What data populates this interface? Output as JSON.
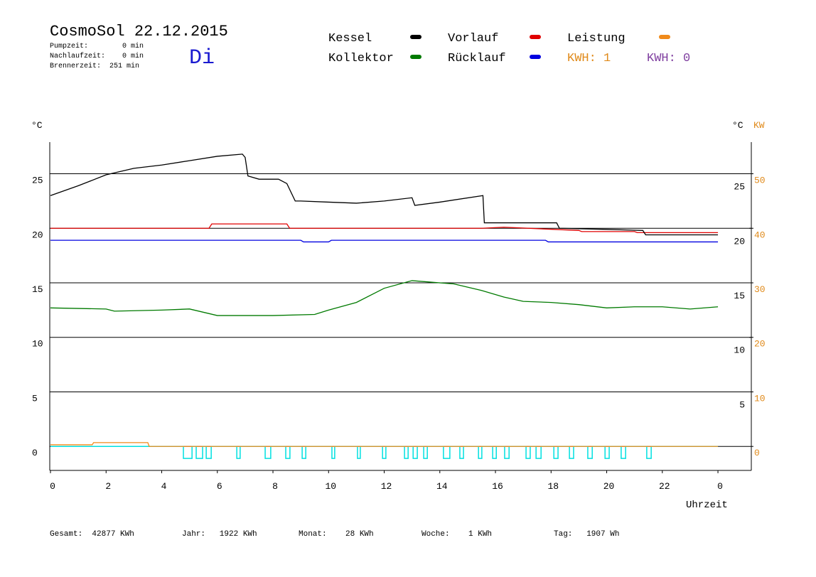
{
  "chart_data": {
    "type": "line",
    "title": "CosmoSol 22.12.2015",
    "info_lines": [
      "Pumpzeit:        0 min",
      "Nachlaufzeit:    0 min",
      "Brennerzeit:  251 min"
    ],
    "weekday": "Di",
    "kwh_labels": [
      {
        "text": "KWH: 1",
        "color": "#e08a1a"
      },
      {
        "text": "KWH: 0",
        "color": "#8040a0"
      }
    ],
    "y_label": "°C",
    "y_right_label": "°C",
    "y2_label": "KW",
    "x_label": "Uhrzeit",
    "footer": [
      "Gesamt:  42877 KWh",
      "Jahr:   1922 KWh",
      "Monat:    28 KWh",
      "Woche:    1 KWh",
      "Tag:   1907 Wh"
    ],
    "xlim": [
      0,
      25.2
    ],
    "xticks": [
      0,
      2,
      4,
      6,
      8,
      10,
      12,
      14,
      16,
      18,
      20,
      22,
      {
        "value": 24,
        "label": "0"
      }
    ],
    "ylim": [
      -2.2,
      27.9
    ],
    "yticks": [
      0,
      5,
      10,
      15,
      20,
      25
    ],
    "yticks_right": [
      5,
      10,
      15,
      20,
      25
    ],
    "y2lim": [
      -4.4,
      55.8
    ],
    "y2ticks": [
      0,
      10,
      20,
      30,
      40,
      50
    ],
    "grid": true,
    "series": [
      {
        "name": "Kessel",
        "color": "#000000",
        "x": [
          0,
          1,
          2,
          3,
          4,
          5,
          6,
          6.9,
          7.0,
          7.1,
          7.5,
          8.2,
          8.5,
          8.8,
          9,
          10,
          11,
          12,
          13,
          13.1,
          14,
          15.55,
          15.6,
          18.2,
          18.3,
          20,
          21.3,
          21.4,
          24
        ],
        "values": [
          23.0,
          23.9,
          24.9,
          25.5,
          25.8,
          26.2,
          26.6,
          26.8,
          26.5,
          24.8,
          24.5,
          24.5,
          24.1,
          22.5,
          22.5,
          22.4,
          22.3,
          22.5,
          22.8,
          22.1,
          22.4,
          23.0,
          20.5,
          20.5,
          20.0,
          19.9,
          19.8,
          19.4,
          19.4
        ]
      },
      {
        "name": "Kollektor",
        "color": "#007a00",
        "x": [
          0,
          2,
          2.3,
          4,
          5,
          6,
          8,
          9.5,
          10,
          11,
          12,
          13,
          14.5,
          15.5,
          16.3,
          17,
          18,
          19,
          20,
          21,
          22,
          23,
          24
        ],
        "values": [
          12.7,
          12.6,
          12.4,
          12.5,
          12.6,
          12.0,
          12.0,
          12.1,
          12.5,
          13.2,
          14.5,
          15.2,
          14.9,
          14.3,
          13.7,
          13.3,
          13.2,
          13.0,
          12.7,
          12.8,
          12.8,
          12.6,
          12.8
        ]
      },
      {
        "name": "Vorlauf",
        "color": "#e00000",
        "x": [
          0,
          5.7,
          5.8,
          8.5,
          8.6,
          15.5,
          16.3,
          19,
          19.1,
          21,
          21.1,
          24
        ],
        "values": [
          20.0,
          20.0,
          20.4,
          20.4,
          20.0,
          20.0,
          20.1,
          19.8,
          19.7,
          19.7,
          19.6,
          19.6
        ]
      },
      {
        "name": "Rücklauf",
        "color": "#0000e0",
        "x": [
          0,
          9,
          9.1,
          10,
          10.1,
          17.8,
          17.9,
          24
        ],
        "values": [
          18.9,
          18.9,
          18.75,
          18.75,
          18.9,
          18.9,
          18.75,
          18.75
        ]
      },
      {
        "name": "Leistung",
        "color": "#f08a1a",
        "axis": "y2",
        "x": [
          0,
          1.5,
          1.55,
          3.5,
          3.55,
          24
        ],
        "values": [
          0.3,
          0.3,
          0.7,
          0.7,
          0,
          0
        ]
      },
      {
        "color": "#00e0e0",
        "step": true,
        "x": [
          0,
          4.78,
          5.09,
          5.24,
          5.47,
          5.6,
          5.78,
          6.7,
          6.82,
          7.72,
          7.92,
          8.46,
          8.61,
          9.05,
          9.18,
          10.12,
          10.22,
          11.04,
          11.14,
          11.94,
          12.06,
          12.73,
          12.86,
          13.04,
          13.19,
          13.42,
          13.55,
          14.13,
          14.36,
          14.72,
          14.85,
          15.39,
          15.51,
          15.9,
          16.03,
          16.33,
          16.49,
          17.1,
          17.25,
          17.46,
          17.64,
          18.1,
          18.25,
          18.66,
          18.81,
          19.32,
          19.48,
          19.94,
          20.09,
          20.52,
          20.68,
          21.44,
          21.6,
          24
        ],
        "values": [
          0,
          -1.1,
          0,
          -1.1,
          0,
          -1.1,
          0,
          -1.1,
          0,
          -1.1,
          0,
          -1.1,
          0,
          -1.1,
          0,
          -1.1,
          0,
          -1.1,
          0,
          -1.1,
          0,
          -1.1,
          0,
          -1.1,
          0,
          -1.1,
          0,
          -1.1,
          0,
          -1.1,
          0,
          -1.1,
          0,
          -1.1,
          0,
          -1.1,
          0,
          -1.1,
          0,
          -1.1,
          0,
          -1.1,
          0,
          -1.1,
          0,
          -1.1,
          0,
          -1.1,
          0,
          -1.1,
          0,
          -1.1,
          0,
          0
        ]
      }
    ]
  }
}
